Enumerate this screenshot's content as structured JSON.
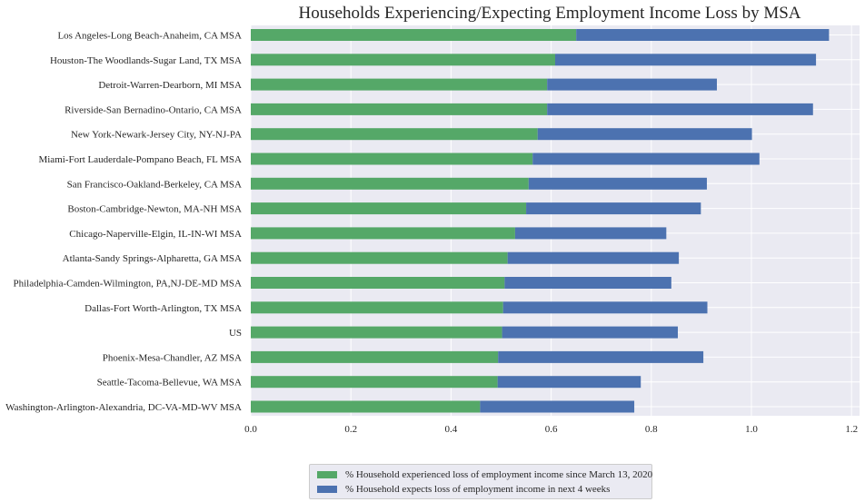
{
  "chart_data": {
    "type": "bar",
    "orientation": "horizontal",
    "stacked": true,
    "title": "Households Experiencing/Expecting Employment Income Loss by MSA",
    "xlabel": "",
    "ylabel": "",
    "xlim": [
      0,
      1.22
    ],
    "xticks": [
      "0.0",
      "0.2",
      "0.4",
      "0.6",
      "0.8",
      "1.0",
      "1.2"
    ],
    "grid": true,
    "legend_position": "bottom-center",
    "categories": [
      "Los Angeles-Long Beach-Anaheim, CA MSA",
      "Houston-The Woodlands-Sugar Land, TX MSA",
      "Detroit-Warren-Dearborn, MI MSA",
      "Riverside-San Bernadino-Ontario, CA MSA",
      "New York-Newark-Jersey City, NY-NJ-PA",
      "Miami-Fort Lauderdale-Pompano Beach, FL MSA",
      "San Francisco-Oakland-Berkeley, CA MSA",
      "Boston-Cambridge-Newton, MA-NH MSA",
      "Chicago-Naperville-Elgin, IL-IN-WI MSA",
      "Atlanta-Sandy Springs-Alpharetta, GA MSA",
      "Philadelphia-Camden-Wilmington, PA,NJ-DE-MD MSA",
      "Dallas-Fort Worth-Arlington, TX MSA",
      "US",
      "Phoenix-Mesa-Chandler, AZ MSA",
      "Seattle-Tacoma-Bellevue, WA MSA",
      "Washington-Arlington-Alexandria, DC-VA-MD-WV MSA"
    ],
    "series": [
      {
        "name": "% Household experienced loss of employment income since March 13, 2020",
        "color": "#55a868",
        "values": [
          0.65,
          0.608,
          0.592,
          0.592,
          0.573,
          0.563,
          0.555,
          0.55,
          0.528,
          0.513,
          0.507,
          0.504,
          0.502,
          0.494,
          0.493,
          0.458
        ]
      },
      {
        "name": "% Household expects loss of employment income in next 4 weeks",
        "color": "#4c72b0",
        "values": [
          0.505,
          0.521,
          0.339,
          0.531,
          0.428,
          0.453,
          0.356,
          0.349,
          0.302,
          0.342,
          0.333,
          0.408,
          0.351,
          0.41,
          0.286,
          0.308
        ]
      }
    ]
  },
  "colors": {
    "plot_background": "#eaeaf2",
    "grid": "#ffffff",
    "text": "#262626"
  }
}
